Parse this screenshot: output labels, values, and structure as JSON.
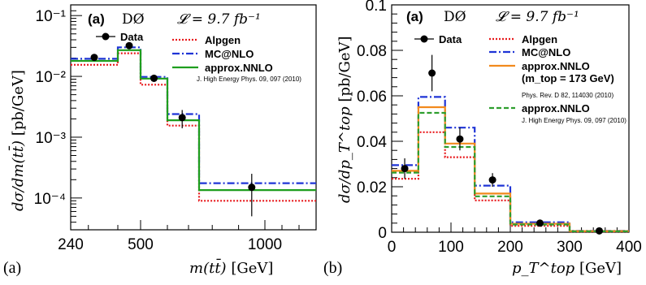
{
  "panel_labels": [
    "(a)",
    "(b)"
  ],
  "colors": {
    "data": "#000000",
    "alpgen": "#e8191c",
    "mcatnlo": "#1f34d6",
    "approx_nnlo_green": "#1e9e1e",
    "approx_nnlo_orange": "#f28a1d",
    "approx_nnlo_dashgreen": "#2e9e2e"
  },
  "chart_data": [
    {
      "type": "line",
      "header": {
        "tag": "(a)",
        "experiment": "DØ",
        "luminosity": "𝓛 = 9.7 fb⁻¹"
      },
      "xlabel": "m(tt̄)",
      "xunit": "[GeV]",
      "ylabel": "dσ/dm(tt̄)",
      "yunit": "[pb/GeV]",
      "xscale": "custom",
      "yscale": "log",
      "ylim": [
        3e-05,
        0.15
      ],
      "x_ticks": [
        240,
        500,
        1000
      ],
      "x_tick_labels": [
        "240",
        "500",
        "1000"
      ],
      "y_ticks": [
        0.0001,
        0.001,
        0.01,
        0.1
      ],
      "y_tick_labels": [
        "10⁻⁴",
        "10⁻³",
        "10⁻²",
        "10⁻¹"
      ],
      "bin_edges": [
        240,
        400,
        500,
        600,
        750,
        1300
      ],
      "data": {
        "name": "Data",
        "x": [
          320,
          450,
          550,
          670,
          950
        ],
        "y": [
          0.0205,
          0.032,
          0.0093,
          0.0021,
          0.00015
        ],
        "yerr_low": [
          0.0022,
          0.0025,
          0.0012,
          0.0007,
          0.0001
        ],
        "yerr_high": [
          0.0022,
          0.0025,
          0.0012,
          0.0007,
          0.0001
        ]
      },
      "series": [
        {
          "name": "Alpgen",
          "style": "dotted",
          "color": "#e8191c",
          "values": [
            0.0155,
            0.024,
            0.0073,
            0.00155,
            9e-05
          ]
        },
        {
          "name": "MC@NLO",
          "style": "dashdot",
          "color": "#1f34d6",
          "values": [
            0.0195,
            0.03,
            0.0098,
            0.0024,
            0.000175
          ]
        },
        {
          "name": "approx.NNLO",
          "style": "solid",
          "color": "#1e9e1e",
          "values": [
            0.018,
            0.027,
            0.0092,
            0.0019,
            0.000135
          ]
        }
      ],
      "legend_note": "J. High Energy Phys. 09, 097 (2010)",
      "legend_position": "top-right"
    },
    {
      "type": "line",
      "header": {
        "tag": "(a)",
        "experiment": "DØ",
        "luminosity": "𝓛 = 9.7 fb⁻¹"
      },
      "xlabel": "p_T^top",
      "xunit": "[GeV]",
      "ylabel": "dσ/dp_T^top",
      "yunit": "[pb/GeV]",
      "xlim": [
        0,
        400
      ],
      "ylim": [
        0,
        0.1
      ],
      "x_ticks": [
        0,
        100,
        200,
        300,
        400
      ],
      "x_tick_labels": [
        "0",
        "100",
        "200",
        "300",
        "400"
      ],
      "y_ticks": [
        0,
        0.02,
        0.04,
        0.06,
        0.08,
        0.1
      ],
      "y_tick_labels": [
        "0",
        "0.02",
        "0.04",
        "0.06",
        "0.08",
        "0.1"
      ],
      "bin_edges": [
        0,
        45,
        90,
        140,
        200,
        300,
        400
      ],
      "data": {
        "name": "Data",
        "x": [
          22,
          68,
          115,
          170,
          250,
          350
        ],
        "y": [
          0.028,
          0.07,
          0.041,
          0.023,
          0.004,
          0.0006
        ],
        "yerr_low": [
          0.0045,
          0.008,
          0.005,
          0.003,
          0.001,
          0.0004
        ],
        "yerr_high": [
          0.0045,
          0.008,
          0.005,
          0.003,
          0.001,
          0.0004
        ]
      },
      "series": [
        {
          "name": "Alpgen",
          "style": "dotted",
          "color": "#e8191c",
          "values": [
            0.0235,
            0.044,
            0.033,
            0.014,
            0.0028,
            0.0003
          ]
        },
        {
          "name": "MC@NLO",
          "style": "dashdot",
          "color": "#1f34d6",
          "values": [
            0.0295,
            0.0595,
            0.046,
            0.0205,
            0.0044,
            0.0006
          ]
        },
        {
          "name": "approx.NNLO",
          "sublabel": "(m_top = 173 GeV)",
          "style": "solid",
          "color": "#f28a1d",
          "values": [
            0.027,
            0.055,
            0.039,
            0.017,
            0.0037,
            0.0005
          ]
        },
        {
          "name": "approx.NNLO",
          "style": "dashed",
          "color": "#2e9e2e",
          "values": [
            0.0262,
            0.0525,
            0.0375,
            0.0158,
            0.0034,
            0.0004
          ]
        }
      ],
      "legend_notes": [
        "Phys. Rev. D 82, 114030 (2010)",
        "J. High Energy Phys. 09, 097 (2010)"
      ],
      "legend_position": "top-right"
    }
  ]
}
